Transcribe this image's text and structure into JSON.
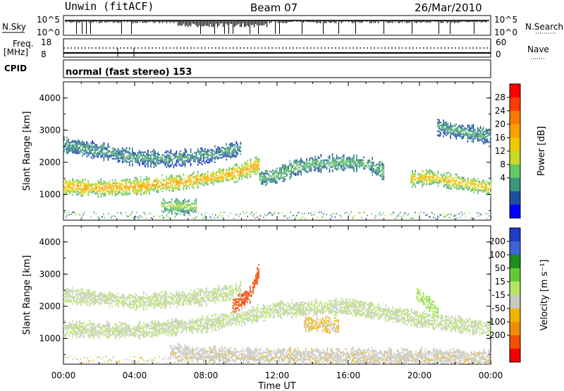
{
  "header": {
    "station": "Unwin (fitACF)",
    "beam": "Beam 07",
    "date": "26/Mar/2010"
  },
  "strip_panels": {
    "nsky_label": "N.Sky",
    "nsky_ticks": [
      "10^5",
      "10^0"
    ],
    "nsearch_label": "N.Search",
    "nsearch_ticks": [
      "10^5",
      "10^0"
    ],
    "freq_label": "Freq.",
    "freq_unit": "[MHz]",
    "freq_ticks": [
      "18",
      "8"
    ],
    "nave_label": "Nave",
    "nave_ticks": [
      "60",
      "0"
    ],
    "cpid_label": "CPID",
    "cpid_value": "normal (fast stereo) 153"
  },
  "chart_data": [
    {
      "type": "heatmap",
      "panel": "power",
      "ylabel": "Slant Range [km]",
      "xlabel": "Time UT",
      "xlim": [
        0,
        24
      ],
      "ylim": [
        200,
        4500
      ],
      "y_ticks": [
        "1000",
        "2000",
        "3000",
        "4000"
      ],
      "x_ticks": [
        "00:00",
        "04:00",
        "08:00",
        "12:00",
        "16:00",
        "20:00",
        "00:00"
      ],
      "colorbar": {
        "label": "Power [dB]",
        "ticks": [
          "28",
          "24",
          "20",
          "16",
          "12",
          "8",
          "4"
        ],
        "colors": [
          "#ff0000",
          "#ff3c00",
          "#ff7800",
          "#ffa000",
          "#f0c800",
          "#c8dc28",
          "#64c864",
          "#3c9678",
          "#1e50a0",
          "#0000ff"
        ]
      },
      "features": [
        {
          "name": "main band",
          "x": [
            0,
            2,
            4,
            6,
            8,
            10,
            11
          ],
          "y": [
            1250,
            1200,
            1250,
            1350,
            1500,
            1700,
            1950
          ],
          "level_db": 22
        },
        {
          "name": "upper band",
          "x": [
            0,
            2,
            4,
            6,
            8,
            10
          ],
          "y": [
            2550,
            2350,
            2150,
            2100,
            2200,
            2450
          ],
          "level_db": 8
        },
        {
          "name": "mid band",
          "x": [
            11,
            12,
            13,
            14,
            15,
            16,
            17,
            18
          ],
          "y": [
            1500,
            1600,
            1850,
            1950,
            1980,
            2000,
            1950,
            1700
          ],
          "level_db": 10
        },
        {
          "name": "evening band",
          "x": [
            19.5,
            20.5,
            21.5,
            22.5,
            23.5,
            24
          ],
          "y": [
            1500,
            1550,
            1450,
            1350,
            1250,
            1200
          ],
          "level_db": 20
        },
        {
          "name": "high patch",
          "x": [
            21,
            22,
            23,
            24
          ],
          "y": [
            3100,
            3000,
            2900,
            2800
          ],
          "level_db": 8
        },
        {
          "name": "near range",
          "x": [
            5.5,
            6.5,
            7.5
          ],
          "y": [
            650,
            620,
            630
          ],
          "level_db": 14
        }
      ]
    },
    {
      "type": "heatmap",
      "panel": "velocity",
      "ylabel": "Slant Range [km]",
      "xlabel": "Time UT",
      "xlim": [
        0,
        24
      ],
      "ylim": [
        200,
        4500
      ],
      "y_ticks": [
        "1000",
        "2000",
        "3000",
        "4000"
      ],
      "x_ticks": [
        "00:00",
        "04:00",
        "08:00",
        "12:00",
        "16:00",
        "20:00",
        "00:00"
      ],
      "colorbar": {
        "label": "Velocity [m s⁻¹]",
        "ticks": [
          "200",
          "100",
          "50",
          "15",
          "-15",
          "-50",
          "-100",
          "-200"
        ],
        "colors": [
          "#1e3cc8",
          "#3c64d2",
          "#1e8c1e",
          "#64c832",
          "#b4e664",
          "#c8c8c0",
          "#f0b400",
          "#f08c00",
          "#f05000",
          "#f00000"
        ]
      },
      "features": [
        {
          "name": "ground scatter band",
          "x": [
            0,
            4,
            8,
            12,
            16,
            20,
            24
          ],
          "y": [
            1300,
            1250,
            1450,
            1900,
            2000,
            1600,
            1300
          ],
          "velocity": 0
        },
        {
          "name": "upper grey band",
          "x": [
            0,
            4,
            8,
            10
          ],
          "y": [
            2350,
            2150,
            2300,
            2500
          ],
          "velocity": 0
        },
        {
          "name": "red streak",
          "x": [
            9.5,
            10.5,
            11
          ],
          "y": [
            2000,
            2400,
            3200
          ],
          "velocity": -200
        },
        {
          "name": "orange patch",
          "x": [
            13.5,
            14.5,
            15.5
          ],
          "y": [
            1450,
            1450,
            1400
          ],
          "velocity": -60
        },
        {
          "name": "green patch",
          "x": [
            19.8,
            20.5,
            21
          ],
          "y": [
            2400,
            2100,
            1800
          ],
          "velocity": 40
        },
        {
          "name": "near range yellow",
          "x": [
            6,
            8,
            16,
            20,
            24
          ],
          "y": [
            600,
            500,
            450,
            450,
            400
          ],
          "velocity": -30
        }
      ]
    }
  ]
}
